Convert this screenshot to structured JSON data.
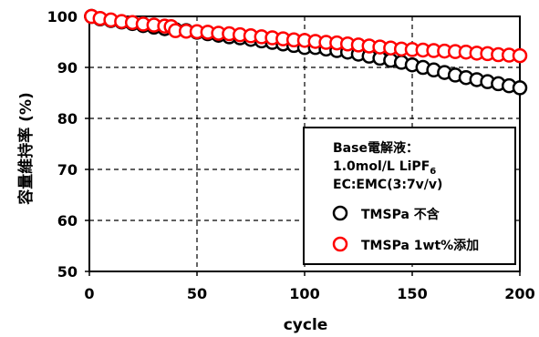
{
  "chart_data": {
    "type": "scatter",
    "xlabel": "cycle",
    "ylabel": "容量維持率 (%)",
    "xlim": [
      0,
      200
    ],
    "ylim": [
      50,
      100
    ],
    "xticks": [
      "0",
      "50",
      "100",
      "150",
      "200"
    ],
    "yticks": [
      "50",
      "60",
      "70",
      "80",
      "90",
      "100"
    ],
    "grid": true,
    "grid_style": "dashed",
    "legend_position": "bottom-right",
    "legend": {
      "header_lines": [
        "Base電解液：",
        "1.0mol/L LiPF",
        "EC:EMC(3:7v/v)"
      ],
      "header_subscript": "6",
      "entries": [
        "TMSPa 不含",
        "TMSPa 1wt%添加"
      ]
    },
    "series": [
      {
        "name": "TMSPa 不含",
        "marker": "open-circle",
        "color": "#000000",
        "x": [
          1,
          5,
          10,
          15,
          20,
          25,
          30,
          35,
          40,
          45,
          50,
          55,
          60,
          65,
          70,
          75,
          80,
          85,
          90,
          95,
          100,
          105,
          110,
          115,
          120,
          125,
          130,
          135,
          140,
          145,
          150,
          155,
          160,
          165,
          170,
          175,
          180,
          185,
          190,
          195,
          200
        ],
        "y": [
          100,
          99.5,
          99.2,
          98.9,
          98.6,
          98.2,
          97.9,
          97.6,
          97.4,
          97.2,
          96.9,
          96.6,
          96.3,
          96.0,
          95.8,
          95.5,
          95.2,
          94.9,
          94.6,
          94.3,
          93.9,
          93.9,
          93.6,
          93.3,
          93.0,
          92.6,
          92.2,
          91.8,
          91.4,
          91.0,
          90.5,
          90.0,
          89.5,
          89.0,
          88.5,
          88.0,
          87.6,
          87.2,
          86.8,
          86.4,
          86.0
        ]
      },
      {
        "name": "TMSPa 1wt%添加",
        "marker": "open-circle",
        "color": "#ff0000",
        "x": [
          1,
          5,
          10,
          15,
          20,
          25,
          30,
          35,
          38,
          40,
          45,
          50,
          55,
          60,
          65,
          70,
          75,
          80,
          85,
          90,
          95,
          100,
          105,
          110,
          115,
          120,
          125,
          130,
          135,
          140,
          145,
          150,
          155,
          160,
          165,
          170,
          175,
          180,
          185,
          190,
          195,
          200
        ],
        "y": [
          100,
          99.6,
          99.3,
          99.0,
          98.8,
          98.5,
          98.3,
          98.1,
          98.0,
          97.2,
          97.1,
          97.0,
          96.9,
          96.7,
          96.6,
          96.4,
          96.2,
          96.0,
          95.8,
          95.6,
          95.4,
          95.3,
          95.1,
          94.9,
          94.8,
          94.6,
          94.4,
          94.2,
          94.0,
          93.8,
          93.6,
          93.5,
          93.4,
          93.3,
          93.2,
          93.1,
          93.0,
          92.8,
          92.7,
          92.5,
          92.4,
          92.3
        ]
      }
    ]
  }
}
